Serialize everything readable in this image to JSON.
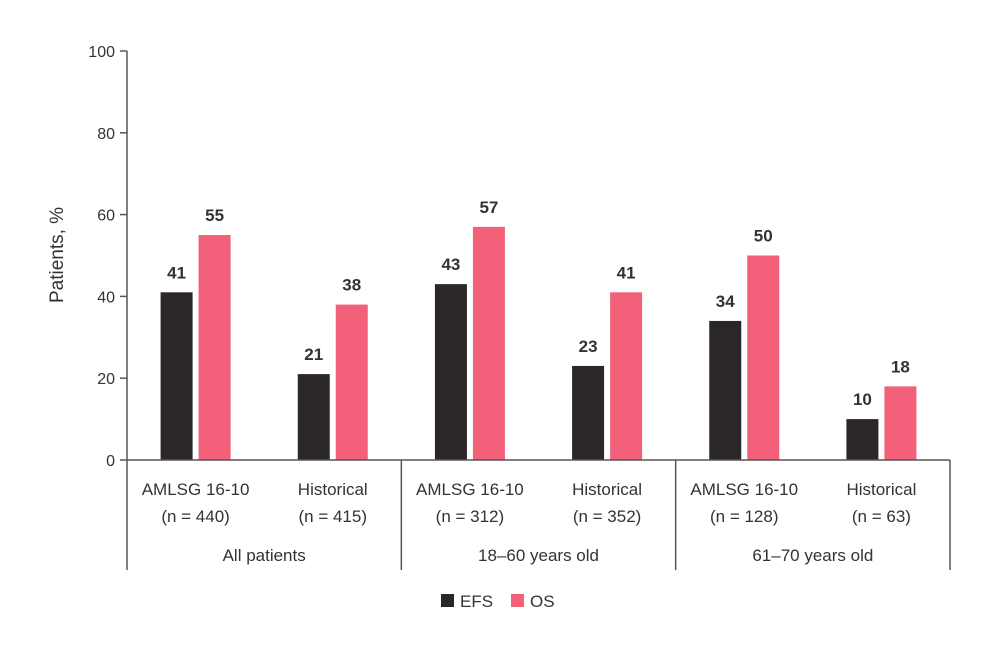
{
  "chart_data": {
    "type": "bar",
    "title": "",
    "xlabel": "",
    "ylabel": "Patients, %",
    "ylim": [
      0,
      100
    ],
    "yticks": [
      0,
      20,
      40,
      60,
      80,
      100
    ],
    "grid": false,
    "legend_position": "bottom-center",
    "groups": [
      {
        "label": "All patients",
        "categories": [
          {
            "name": "AMLSG 16-10",
            "n": "(n = 440)",
            "EFS": 41,
            "OS": 55
          },
          {
            "name": "Historical",
            "n": "(n = 415)",
            "EFS": 21,
            "OS": 38
          }
        ]
      },
      {
        "label": "18–60 years old",
        "categories": [
          {
            "name": "AMLSG 16-10",
            "n": "(n = 312)",
            "EFS": 43,
            "OS": 57
          },
          {
            "name": "Historical",
            "n": "(n = 352)",
            "EFS": 23,
            "OS": 41
          }
        ]
      },
      {
        "label": "61–70 years old",
        "categories": [
          {
            "name": "AMLSG 16-10",
            "n": "(n = 128)",
            "EFS": 34,
            "OS": 50
          },
          {
            "name": "Historical",
            "n": "(n = 63)",
            "EFS": 10,
            "OS": 18
          }
        ]
      }
    ],
    "series": [
      {
        "name": "EFS",
        "color": "#2b2728"
      },
      {
        "name": "OS",
        "color": "#f2607a"
      }
    ]
  }
}
